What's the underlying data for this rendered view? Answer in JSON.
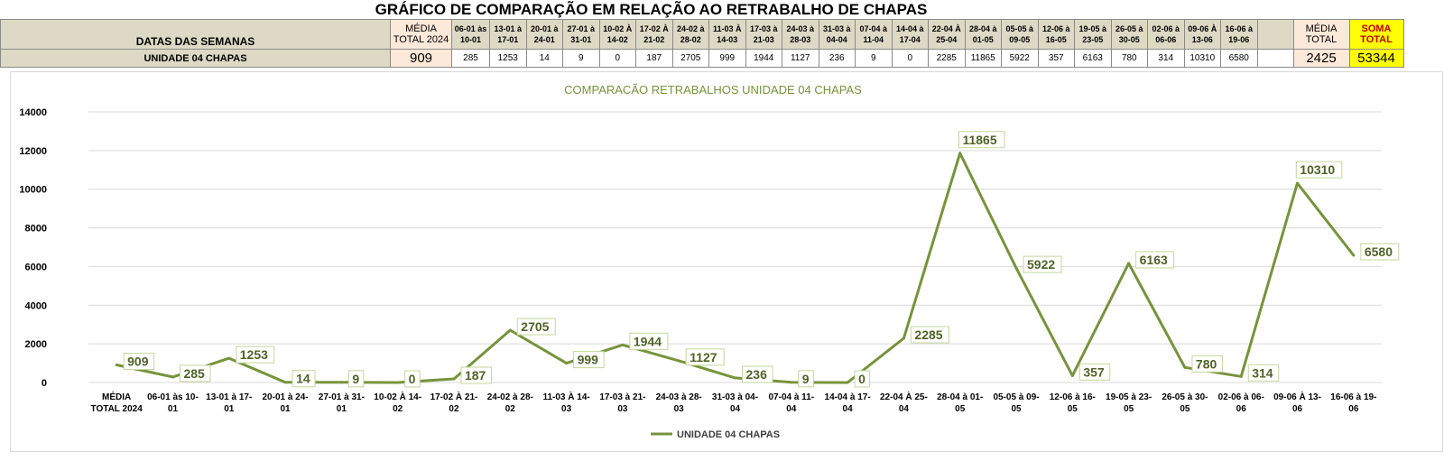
{
  "sheet": {
    "title": "GRÁFICO DE COMPARAÇÃO EM RELAÇÃO AO RETRABALHO DE CHAPAS",
    "header_label": "DATAS DAS SEMANAS",
    "media_label": "MÉDIA TOTAL 2024",
    "weeks": [
      "06-01 às 10-01",
      "13-01 à 17-01",
      "20-01 à 24-01",
      "27-01 à 31-01",
      "10-02 À 14-02",
      "17-02 À 21-02",
      "24-02 à 28-02",
      "11-03 À 14-03",
      "17-03 à 21-03",
      "24-03 à 28-03",
      "31-03 à 04-04",
      "07-04 à 11-04",
      "14-04 à 17-04",
      "22-04 À 25-04",
      "28-04 à 01-05",
      "05-05 à 09-05",
      "12-06 à 16-05",
      "19-05 à 23-05",
      "26-05 à 30-05",
      "02-06 à 06-06",
      "09-06 À 13-06",
      "16-06 à 19-06"
    ],
    "media_total_label": "MÉDIA TOTAL",
    "soma_total_label": "SOMA TOTAL",
    "row_label": "UNIDADE 04 CHAPAS",
    "media_value": "909",
    "values": [
      "285",
      "1253",
      "14",
      "9",
      "0",
      "187",
      "2705",
      "999",
      "1944",
      "1127",
      "236",
      "9",
      "0",
      "2285",
      "11865",
      "5922",
      "357",
      "6163",
      "780",
      "314",
      "10310",
      "6580"
    ],
    "media_total_value": "2425",
    "soma_total_value": "53344"
  },
  "colors": {
    "line": "#77933c",
    "label_text": "#4f6228",
    "grid": "#d9d9d9",
    "header_bg": "#ddd9c4",
    "media_bg": "#fde9d9",
    "soma_bg": "#ffff00"
  },
  "chart_data": {
    "type": "line",
    "title": "COMPARACÃO RETRABALHOS UNIDADE 04 CHAPAS",
    "categories": [
      "MÉDIA TOTAL 2024",
      "06-01 às 10-01",
      "13-01 à 17-01",
      "20-01 à 24-01",
      "27-01 à 31-01",
      "10-02 À 14-02",
      "17-02 À 21-02",
      "24-02 à 28-02",
      "11-03 À 14-03",
      "17-03 à 21-03",
      "24-03 à 28-03",
      "31-03 à 04-04",
      "07-04 à 11-04",
      "14-04 à 17-04",
      "22-04 À 25-04",
      "28-04 à 01-05",
      "05-05 à 09-05",
      "12-06 à 16-05",
      "19-05 à 23-05",
      "26-05 à 30-05",
      "02-06 à 06-06",
      "09-06 À 13-06",
      "16-06 à 19-06"
    ],
    "category_lines": [
      [
        "MÉDIA",
        "TOTAL 2024"
      ],
      [
        "06-01 às 10-",
        "01"
      ],
      [
        "13-01 à 17-",
        "01"
      ],
      [
        "20-01 à 24-",
        "01"
      ],
      [
        "27-01 à 31-",
        "01"
      ],
      [
        "10-02 À 14-",
        "02"
      ],
      [
        "17-02 À 21-",
        "02"
      ],
      [
        "24-02 à 28-",
        "02"
      ],
      [
        "11-03 À 14-",
        "03"
      ],
      [
        "17-03 à 21-",
        "03"
      ],
      [
        "24-03 à 28-",
        "03"
      ],
      [
        "31-03 à 04-",
        "04"
      ],
      [
        "07-04 à 11-",
        "04"
      ],
      [
        "14-04 à 17-",
        "04"
      ],
      [
        "22-04 À 25-",
        "04"
      ],
      [
        "28-04 à 01-",
        "05"
      ],
      [
        "05-05 à 09-",
        "05"
      ],
      [
        "12-06 à 16-",
        "05"
      ],
      [
        "19-05 à 23-",
        "05"
      ],
      [
        "26-05 à 30-",
        "05"
      ],
      [
        "02-06 à 06-",
        "06"
      ],
      [
        "09-06 À 13-",
        "06"
      ],
      [
        "16-06 à 19-",
        "06"
      ]
    ],
    "series": [
      {
        "name": "UNIDADE 04 CHAPAS",
        "values": [
          909,
          285,
          1253,
          14,
          9,
          0,
          187,
          2705,
          999,
          1944,
          1127,
          236,
          9,
          0,
          2285,
          11865,
          5922,
          357,
          6163,
          780,
          314,
          10310,
          6580
        ]
      }
    ],
    "ylim": [
      0,
      14000
    ],
    "yticks": [
      0,
      2000,
      4000,
      6000,
      8000,
      10000,
      12000,
      14000
    ],
    "grid": true,
    "legend": "bottom"
  }
}
